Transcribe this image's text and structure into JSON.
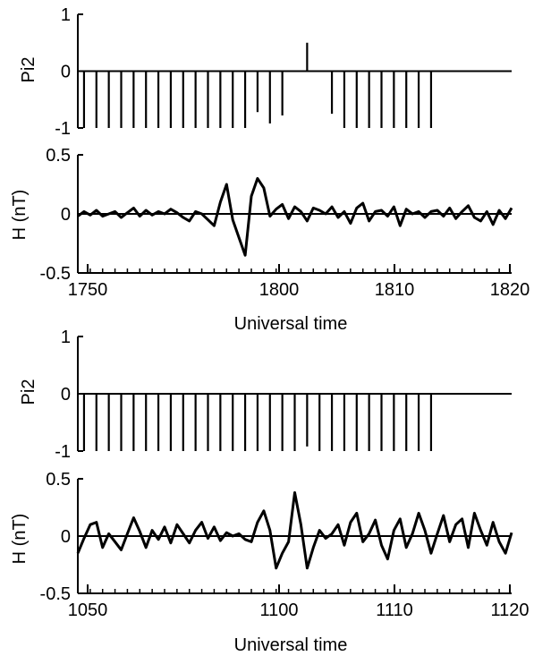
{
  "chart_data": [
    {
      "type": "bar",
      "panel": "top-pi2",
      "ylabel": "Pi2",
      "ylim": [
        -1,
        1
      ],
      "yticks": [
        "1",
        "0",
        "-1"
      ],
      "xlim": [
        0,
        70
      ],
      "x_offsets": [
        1,
        3,
        5,
        7,
        9,
        11,
        13,
        15,
        17,
        19,
        21,
        23,
        25,
        27,
        29,
        31,
        33,
        35,
        37,
        39,
        41,
        43,
        45,
        47,
        49,
        51,
        53,
        55,
        57
      ],
      "values": [
        -1,
        -1,
        -1,
        -1,
        -1,
        -1,
        -1,
        -1,
        -1,
        -1,
        -1,
        -1,
        -1,
        -1,
        -0.72,
        -0.92,
        -0.78,
        0,
        0.5,
        0,
        -0.75,
        -1,
        -1,
        -1,
        -1,
        -1,
        -1,
        -1,
        -1
      ]
    },
    {
      "type": "line",
      "panel": "top-h",
      "ylabel": "H (nT)",
      "xlabel": "Universal time",
      "ylim": [
        -0.5,
        0.5
      ],
      "yticks": [
        "0.5",
        "0",
        "-0.5"
      ],
      "xlim": [
        0,
        70
      ],
      "xticks": [
        "1750",
        "1800",
        "1810",
        "1820"
      ],
      "series": [
        {
          "x": [
            0,
            1,
            2,
            3,
            4,
            5,
            6,
            7,
            8,
            9,
            10,
            11,
            12,
            13,
            14,
            15,
            16,
            17,
            18,
            19,
            20,
            21,
            22,
            23,
            24,
            25,
            26,
            27,
            28,
            29,
            30,
            31,
            32,
            33,
            34,
            35,
            36,
            37,
            38,
            39,
            40,
            41,
            42,
            43,
            44,
            45,
            46,
            47,
            48,
            49,
            50,
            51,
            52,
            53,
            54,
            55,
            56,
            57,
            58,
            59,
            60,
            61,
            62,
            63,
            64,
            65,
            66,
            67,
            68,
            69,
            70
          ],
          "values": [
            -0.02,
            0.02,
            -0.01,
            0.03,
            -0.02,
            0.0,
            0.02,
            -0.03,
            0.01,
            0.05,
            -0.02,
            0.03,
            -0.01,
            0.02,
            0.0,
            0.04,
            0.01,
            -0.03,
            -0.06,
            0.02,
            0.0,
            -0.05,
            -0.1,
            0.1,
            0.25,
            -0.05,
            -0.2,
            -0.35,
            0.15,
            0.3,
            0.22,
            -0.02,
            0.04,
            0.08,
            -0.04,
            0.06,
            0.02,
            -0.06,
            0.05,
            0.03,
            0.0,
            0.06,
            -0.03,
            0.02,
            -0.08,
            0.05,
            0.09,
            -0.06,
            0.02,
            0.03,
            -0.02,
            0.06,
            -0.1,
            0.04,
            0.0,
            0.02,
            -0.03,
            0.02,
            0.03,
            -0.02,
            0.05,
            -0.04,
            0.02,
            0.07,
            -0.03,
            -0.06,
            0.02,
            -0.09,
            0.03,
            -0.04,
            0.05
          ]
        }
      ]
    },
    {
      "type": "bar",
      "panel": "bottom-pi2",
      "ylabel": "Pi2",
      "ylim": [
        -1,
        1
      ],
      "yticks": [
        "1",
        "0",
        "-1"
      ],
      "xlim": [
        0,
        70
      ],
      "x_offsets": [
        1,
        3,
        5,
        7,
        9,
        11,
        13,
        15,
        17,
        19,
        21,
        23,
        25,
        27,
        29,
        31,
        33,
        35,
        37,
        39,
        41,
        43,
        45,
        47,
        49,
        51,
        53,
        55,
        57
      ],
      "values": [
        -1,
        -1,
        -1,
        -1,
        -1,
        -1,
        -1,
        -1,
        -1,
        -1,
        -1,
        -1,
        -1,
        -1,
        -1,
        -1,
        -1,
        -1,
        -0.92,
        -1,
        -1,
        -1,
        -1,
        -1,
        -1,
        -1,
        -1,
        -1,
        -1
      ]
    },
    {
      "type": "line",
      "panel": "bottom-h",
      "ylabel": "H (nT)",
      "xlabel": "Universal time",
      "ylim": [
        -0.5,
        0.5
      ],
      "yticks": [
        "0.5",
        "0",
        "-0.5"
      ],
      "xlim": [
        0,
        70
      ],
      "xticks": [
        "1050",
        "1100",
        "1110",
        "1120"
      ],
      "series": [
        {
          "x": [
            0,
            1,
            2,
            3,
            4,
            5,
            6,
            7,
            8,
            9,
            10,
            11,
            12,
            13,
            14,
            15,
            16,
            17,
            18,
            19,
            20,
            21,
            22,
            23,
            24,
            25,
            26,
            27,
            28,
            29,
            30,
            31,
            32,
            33,
            34,
            35,
            36,
            37,
            38,
            39,
            40,
            41,
            42,
            43,
            44,
            45,
            46,
            47,
            48,
            49,
            50,
            51,
            52,
            53,
            54,
            55,
            56,
            57,
            58,
            59,
            60,
            61,
            62,
            63,
            64,
            65,
            66,
            67,
            68,
            69,
            70
          ],
          "values": [
            -0.15,
            -0.02,
            0.1,
            0.12,
            -0.1,
            0.02,
            -0.05,
            -0.12,
            0.02,
            0.16,
            0.04,
            -0.1,
            0.05,
            -0.03,
            0.08,
            -0.06,
            0.1,
            0.02,
            -0.06,
            0.05,
            0.12,
            -0.02,
            0.08,
            -0.04,
            0.03,
            0.0,
            0.02,
            -0.03,
            -0.05,
            0.12,
            0.22,
            0.05,
            -0.28,
            -0.15,
            -0.05,
            0.38,
            0.1,
            -0.28,
            -0.1,
            0.05,
            -0.02,
            0.02,
            0.1,
            -0.08,
            0.12,
            0.2,
            -0.05,
            0.02,
            0.14,
            -0.08,
            -0.2,
            0.05,
            0.15,
            -0.1,
            0.02,
            0.2,
            0.05,
            -0.15,
            0.02,
            0.18,
            -0.05,
            0.1,
            0.15,
            -0.1,
            0.2,
            0.05,
            -0.08,
            0.12,
            -0.05,
            -0.15,
            0.03
          ]
        }
      ]
    }
  ]
}
